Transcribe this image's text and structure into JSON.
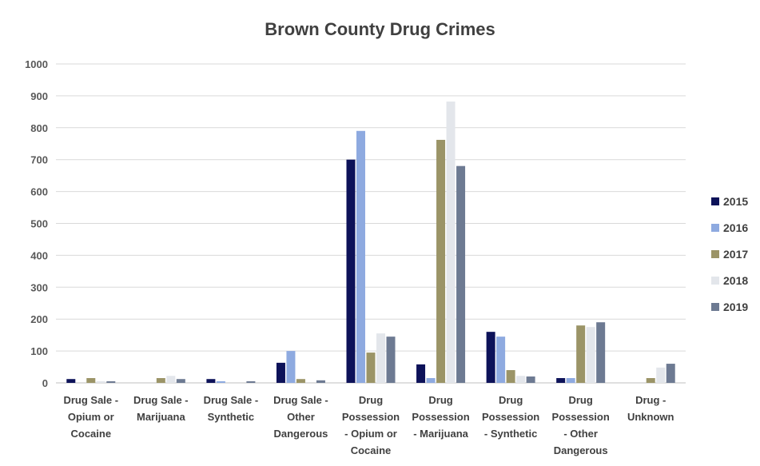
{
  "chart_data": {
    "type": "bar",
    "title": "Brown County Drug Crimes",
    "xlabel": "",
    "ylabel": "",
    "ylim": [
      0,
      1000
    ],
    "yticks": [
      0,
      100,
      200,
      300,
      400,
      500,
      600,
      700,
      800,
      900,
      1000
    ],
    "grid": true,
    "legend_position": "right",
    "categories": [
      [
        "Drug Sale -",
        "Opium or",
        "Cocaine"
      ],
      [
        "Drug Sale -",
        "Marijuana"
      ],
      [
        "Drug Sale -",
        "Synthetic"
      ],
      [
        "Drug Sale -",
        "Other",
        "Dangerous"
      ],
      [
        "Drug",
        "Possession",
        "- Opium or",
        "Cocaine"
      ],
      [
        "Drug",
        "Possession",
        "- Marijuana"
      ],
      [
        "Drug",
        "Possession",
        "- Synthetic"
      ],
      [
        "Drug",
        "Possession",
        "- Other",
        "Dangerous"
      ],
      [
        "Drug -",
        "Unknown"
      ]
    ],
    "series": [
      {
        "name": "2015",
        "color": "#0d1259",
        "values": [
          12,
          0,
          12,
          63,
          700,
          58,
          160,
          15,
          0
        ]
      },
      {
        "name": "2016",
        "color": "#8eaae0",
        "values": [
          0,
          0,
          5,
          100,
          790,
          15,
          145,
          15,
          0
        ]
      },
      {
        "name": "2017",
        "color": "#9b9467",
        "values": [
          15,
          15,
          0,
          12,
          95,
          762,
          40,
          180,
          15
        ]
      },
      {
        "name": "2018",
        "color": "#e3e6eb",
        "values": [
          5,
          22,
          0,
          0,
          155,
          882,
          22,
          175,
          48
        ]
      },
      {
        "name": "2019",
        "color": "#6d7a92",
        "values": [
          5,
          12,
          5,
          8,
          145,
          680,
          20,
          190,
          60
        ]
      }
    ]
  }
}
